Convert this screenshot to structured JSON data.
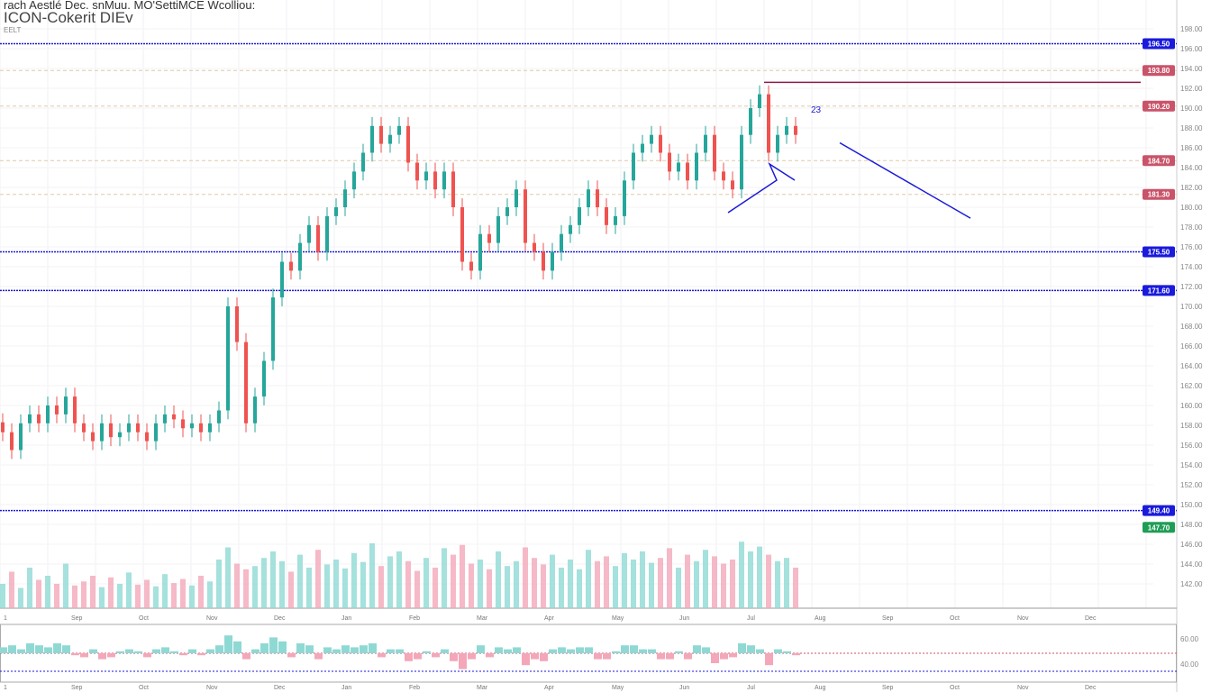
{
  "header": {
    "line1": "rach Aestlé Dec. snMuu. MO'SettiMCE Wcolliou:",
    "line2": "ICON-Cokerit DIEv",
    "line3": "EELT"
  },
  "chart_data": {
    "type": "candlestick",
    "ylim": [
      140,
      200
    ],
    "y_ticks": [
      198,
      196,
      194,
      192,
      190,
      188,
      186,
      184,
      182,
      180,
      178,
      176,
      174,
      172,
      170,
      168,
      166,
      164,
      162,
      160,
      158,
      156,
      154,
      152,
      150,
      148,
      146,
      144,
      142
    ],
    "closes": [
      157.3,
      155.5,
      158.2,
      159.1,
      158.2,
      160,
      159.1,
      160.9,
      158.2,
      157.3,
      156.4,
      158.2,
      156.8,
      157.3,
      158.2,
      157.3,
      156.4,
      158.2,
      159.1,
      158.6,
      157.7,
      158.2,
      157.3,
      158.2,
      159.5,
      170,
      166.4,
      158.2,
      160.9,
      164.5,
      170.9,
      174.5,
      173.6,
      176.4,
      178.2,
      175.5,
      179.1,
      180,
      181.8,
      183.6,
      185.5,
      188.2,
      186.4,
      187.3,
      188.2,
      184.5,
      182.7,
      183.6,
      181.8,
      183.6,
      180,
      174.5,
      173.6,
      177.3,
      176.4,
      179.1,
      180,
      181.8,
      176.4,
      175.5,
      173.6,
      175.5,
      177.3,
      178.2,
      180,
      181.8,
      180,
      178.2,
      179.1,
      182.7,
      185.5,
      186.4,
      187.3,
      185.5,
      183.6,
      184.5,
      182.7,
      185.5,
      187.3,
      183.6,
      182.7,
      181.8,
      187.3,
      190,
      191.4,
      185.5,
      187.3,
      188.2,
      187.3
    ],
    "volume": [
      30,
      45,
      25,
      50,
      35,
      40,
      30,
      55,
      28,
      33,
      40,
      26,
      38,
      30,
      44,
      29,
      35,
      27,
      42,
      31,
      36,
      28,
      40,
      33,
      60,
      75,
      55,
      48,
      52,
      62,
      70,
      58,
      45,
      66,
      50,
      72,
      54,
      60,
      49,
      68,
      57,
      80,
      52,
      64,
      70,
      58,
      46,
      62,
      50,
      74,
      66,
      78,
      55,
      60,
      48,
      70,
      52,
      58,
      75,
      62,
      54,
      66,
      50,
      60,
      48,
      72,
      58,
      64,
      52,
      68,
      60,
      70,
      56,
      62,
      74,
      50,
      66,
      58,
      72,
      64,
      55,
      60,
      82,
      70,
      76,
      66,
      58,
      62,
      50
    ],
    "oscillator": [
      3,
      4,
      2,
      5,
      4,
      3,
      5,
      4,
      -1,
      -2,
      2,
      -3,
      -2,
      1,
      2,
      1,
      -2,
      2,
      3,
      1,
      -1,
      2,
      -1,
      2,
      4,
      9,
      6,
      -3,
      2,
      5,
      8,
      6,
      -2,
      5,
      4,
      -3,
      3,
      2,
      4,
      3,
      4,
      5,
      -2,
      2,
      2,
      -4,
      -3,
      1,
      -2,
      2,
      -4,
      -8,
      -3,
      4,
      -2,
      3,
      2,
      3,
      -6,
      -3,
      -4,
      2,
      3,
      2,
      3,
      3,
      -3,
      -3,
      1,
      4,
      4,
      2,
      2,
      -3,
      -3,
      1,
      -3,
      4,
      3,
      -5,
      -3,
      -2,
      5,
      4,
      2,
      -6,
      2,
      1,
      -1
    ],
    "horizontal_levels": [
      {
        "price": 196.5,
        "label": "196.50",
        "color": "#1a1adb",
        "style": "dotted"
      },
      {
        "price": 175.5,
        "label": "175.50",
        "color": "#1a1adb",
        "style": "dotted"
      },
      {
        "price": 171.6,
        "label": "171.60",
        "color": "#1a1adb",
        "style": "dotted"
      },
      {
        "price": 149.4,
        "label": "149.40",
        "color": "#1a1adb",
        "style": "dotted"
      },
      {
        "price": 193.8,
        "label": "193.80",
        "color": "#c9546a",
        "style": "dashed"
      },
      {
        "price": 190.2,
        "label": "190.20",
        "color": "#c9546a",
        "style": "dashed"
      },
      {
        "price": 184.7,
        "label": "184.70",
        "color": "#c9546a",
        "style": "dashed"
      },
      {
        "price": 181.3,
        "label": "181.30",
        "color": "#c9546a",
        "style": "dashed"
      }
    ],
    "current_price": {
      "price": 147.7,
      "label": "147.70",
      "color": "#1f9d55"
    },
    "resistance_line": {
      "price": 192.6,
      "color": "#8b1a4a"
    },
    "trend_line": {
      "from": [
        93,
        186.5
      ],
      "to": [
        108,
        178.9
      ],
      "color": "#1a1adb"
    },
    "annotation": "23",
    "x_labels": [
      "1",
      "Sep",
      "Oct",
      "Nov",
      "Dec",
      "Jan",
      "Feb",
      "Mar",
      "Apr",
      "May",
      "Jun",
      "Jul",
      "Aug",
      "Sep",
      "Oct",
      "Nov",
      "Dec"
    ],
    "oscillator_labels": [
      "60.00",
      "40.00"
    ],
    "colors": {
      "up": "#26a69a",
      "down": "#ef5350",
      "vol_up": "#8fd9d4",
      "vol_down": "#f4a7b9",
      "level": "#1a1adb"
    }
  }
}
